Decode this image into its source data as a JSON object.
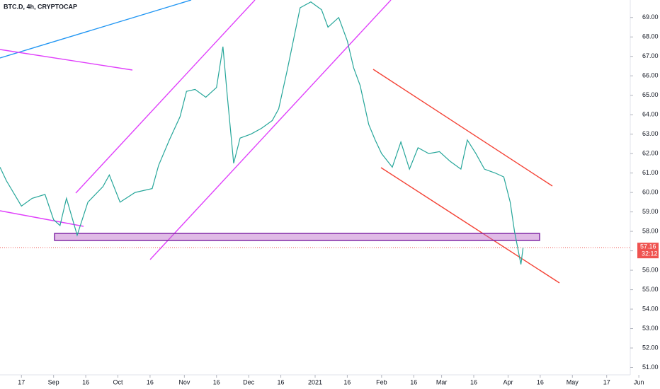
{
  "chart_data": {
    "type": "line",
    "title": "BTC.D, 4h, CRYPTOCAP",
    "x": [
      -10,
      -7,
      0,
      5,
      11,
      15,
      18,
      21,
      26,
      31,
      38,
      41,
      46,
      53,
      61,
      64,
      69,
      74,
      77,
      81,
      86,
      91,
      94,
      96,
      99,
      102,
      107,
      112,
      117,
      120,
      124,
      127,
      130,
      135,
      140,
      143,
      148,
      152,
      155,
      158,
      162,
      165,
      168,
      173,
      177,
      181,
      185,
      190,
      195,
      200,
      205,
      208,
      212,
      216,
      221,
      225,
      228,
      230,
      233,
      234
    ],
    "series": [
      {
        "name": "BTC.D",
        "color": "#26a69a",
        "values": [
          61.3,
          60.6,
          59.3,
          59.7,
          59.9,
          58.6,
          58.3,
          59.7,
          57.8,
          59.5,
          60.3,
          60.9,
          59.5,
          60.0,
          60.2,
          61.4,
          62.7,
          63.9,
          65.2,
          65.3,
          64.9,
          65.4,
          67.5,
          65.0,
          61.5,
          62.8,
          63.0,
          63.3,
          63.7,
          64.3,
          66.3,
          67.9,
          69.5,
          69.8,
          69.4,
          68.5,
          69.0,
          67.8,
          66.4,
          65.5,
          63.5,
          62.7,
          62.0,
          61.3,
          62.6,
          61.2,
          62.3,
          62.0,
          62.1,
          61.6,
          61.2,
          62.7,
          62.0,
          61.2,
          61.0,
          60.8,
          59.5,
          58.0,
          56.3,
          57.16
        ]
      }
    ],
    "xlim": [
      -10,
      284
    ],
    "ylim": [
      50.4,
      69.9
    ],
    "xticks": [
      {
        "value": 0,
        "label": "17"
      },
      {
        "value": 15,
        "label": "Sep"
      },
      {
        "value": 30,
        "label": "16"
      },
      {
        "value": 45,
        "label": "Oct"
      },
      {
        "value": 60,
        "label": "16"
      },
      {
        "value": 76,
        "label": "Nov"
      },
      {
        "value": 91,
        "label": "16"
      },
      {
        "value": 106,
        "label": "Dec"
      },
      {
        "value": 121,
        "label": "16"
      },
      {
        "value": 137,
        "label": "2021"
      },
      {
        "value": 152,
        "label": "16"
      },
      {
        "value": 168,
        "label": "Feb"
      },
      {
        "value": 183,
        "label": "16"
      },
      {
        "value": 196,
        "label": "Mar"
      },
      {
        "value": 211,
        "label": "16"
      },
      {
        "value": 227,
        "label": "Apr"
      },
      {
        "value": 242,
        "label": "16"
      },
      {
        "value": 257,
        "label": "May"
      },
      {
        "value": 273,
        "label": "17"
      },
      {
        "value": 288,
        "label": "Jun"
      }
    ],
    "yticks": [
      {
        "value": 51,
        "label": "51.00"
      },
      {
        "value": 52,
        "label": "52.00"
      },
      {
        "value": 53,
        "label": "53.00"
      },
      {
        "value": 54,
        "label": "54.00"
      },
      {
        "value": 55,
        "label": "55.00"
      },
      {
        "value": 56,
        "label": "56.00"
      },
      {
        "value": 57,
        "label": "57.00"
      },
      {
        "value": 58,
        "label": "58.00"
      },
      {
        "value": 59,
        "label": "59.00"
      },
      {
        "value": 60,
        "label": "60.00"
      },
      {
        "value": 61,
        "label": "61.00"
      },
      {
        "value": 62,
        "label": "62.00"
      },
      {
        "value": 63,
        "label": "63.00"
      },
      {
        "value": 64,
        "label": "64.00"
      },
      {
        "value": 65,
        "label": "65.00"
      },
      {
        "value": 66,
        "label": "66.00"
      },
      {
        "value": 67,
        "label": "67.00"
      },
      {
        "value": 68,
        "label": "68.00"
      },
      {
        "value": 69,
        "label": "69.00"
      }
    ],
    "last_price": 57.16,
    "last_price_color": "#ef5350",
    "countdown": "32:12"
  }
}
